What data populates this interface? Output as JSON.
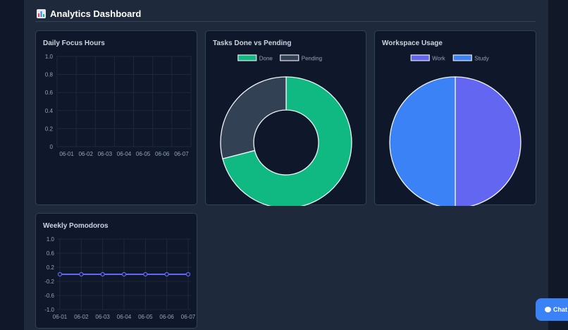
{
  "header": {
    "title": "Analytics Dashboard",
    "icon": "bar-chart-icon"
  },
  "chat": {
    "label": "Chat",
    "icon": "chat-bubble-icon"
  },
  "chart_data": [
    {
      "type": "bar",
      "title": "Daily Focus Hours",
      "categories": [
        "06-01",
        "06-02",
        "06-03",
        "06-04",
        "06-05",
        "06-06",
        "06-07"
      ],
      "values": [
        0,
        0,
        0,
        0,
        0,
        0,
        0
      ],
      "yticks": [
        "1.0",
        "0.8",
        "0.6",
        "0.4",
        "0.2",
        "0"
      ],
      "ylim": [
        0,
        1
      ],
      "grid": true
    },
    {
      "type": "pie",
      "donut": true,
      "title": "Tasks Done vs Pending",
      "labels": [
        "Done",
        "Pending"
      ],
      "values": [
        71,
        29
      ],
      "colors": [
        "#10b981",
        "#334155"
      ],
      "legend": "top"
    },
    {
      "type": "pie",
      "title": "Workspace Usage",
      "labels": [
        "Work",
        "Study"
      ],
      "values": [
        50,
        50
      ],
      "colors": [
        "#6366f1",
        "#3b82f6"
      ],
      "legend": "top"
    },
    {
      "type": "line",
      "title": "Weekly Pomodoros",
      "categories": [
        "06-01",
        "06-02",
        "06-03",
        "06-04",
        "06-05",
        "06-06",
        "06-07"
      ],
      "values": [
        0,
        0,
        0,
        0,
        0,
        0,
        0
      ],
      "yticks": [
        "1.0",
        "0.6",
        "0.2",
        "-0.2",
        "-0.6",
        "-1.0"
      ],
      "ylim": [
        -1,
        1
      ],
      "color": "#6366f1",
      "grid": true
    }
  ]
}
